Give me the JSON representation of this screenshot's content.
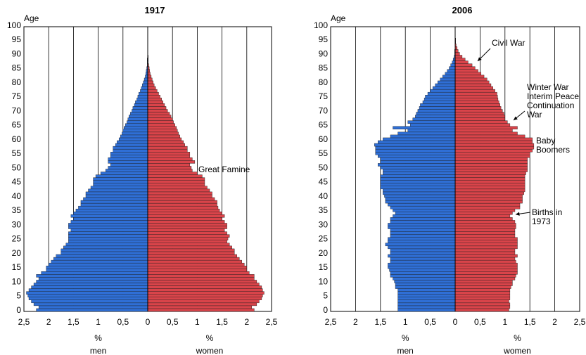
{
  "colors": {
    "men": "#2f6fd6",
    "women": "#d9444a",
    "grid": "#000000",
    "bar_edge": "#1a1a1a"
  },
  "chart_data": [
    {
      "type": "bar",
      "orientation": "horizontal-population-pyramid",
      "title": "1917",
      "ylabel": "Age",
      "y_ticks": [
        "0",
        "5",
        "10",
        "15",
        "20",
        "25",
        "30",
        "35",
        "40",
        "45",
        "50",
        "55",
        "60",
        "65",
        "70",
        "75",
        "80",
        "85",
        "90",
        "95",
        "100"
      ],
      "x_ticks_left": [
        "2,5",
        "2",
        "1,5",
        "1",
        "0,5",
        "0"
      ],
      "x_ticks_right": [
        "0,5",
        "1",
        "1,5",
        "2",
        "2,5"
      ],
      "xlim": [
        -2.5,
        2.5
      ],
      "ylim": [
        0,
        100
      ],
      "grid": "vertical",
      "label_men": "%\nmen",
      "label_women": "%\nwomen",
      "annotations": [
        {
          "text": "Great Famine",
          "age": 50
        }
      ],
      "series": [
        {
          "name": "men",
          "values": [
            2.25,
            2.2,
            2.3,
            2.35,
            2.4,
            2.42,
            2.45,
            2.4,
            2.35,
            2.3,
            2.25,
            2.2,
            2.25,
            2.15,
            2.05,
            2.05,
            2.0,
            1.95,
            1.9,
            1.85,
            1.75,
            1.75,
            1.7,
            1.65,
            1.6,
            1.6,
            1.6,
            1.6,
            1.55,
            1.6,
            1.6,
            1.55,
            1.5,
            1.55,
            1.5,
            1.45,
            1.4,
            1.35,
            1.35,
            1.3,
            1.25,
            1.25,
            1.2,
            1.15,
            1.1,
            1.1,
            1.1,
            1.05,
            0.95,
            0.85,
            0.8,
            0.75,
            0.8,
            0.8,
            0.75,
            0.75,
            0.7,
            0.7,
            0.65,
            0.62,
            0.58,
            0.55,
            0.52,
            0.5,
            0.48,
            0.45,
            0.42,
            0.4,
            0.38,
            0.35,
            0.32,
            0.3,
            0.27,
            0.25,
            0.22,
            0.2,
            0.18,
            0.15,
            0.13,
            0.11,
            0.09,
            0.07,
            0.05,
            0.04,
            0.03,
            0.02,
            0.01,
            0.01,
            0.01,
            0,
            0,
            0,
            0,
            0,
            0,
            0,
            0,
            0,
            0,
            0,
            0
          ]
        },
        {
          "name": "women",
          "values": [
            2.15,
            2.1,
            2.2,
            2.25,
            2.3,
            2.32,
            2.35,
            2.32,
            2.3,
            2.25,
            2.2,
            2.15,
            2.15,
            2.05,
            2.0,
            2.0,
            1.95,
            1.9,
            1.85,
            1.8,
            1.75,
            1.75,
            1.7,
            1.65,
            1.6,
            1.62,
            1.65,
            1.6,
            1.55,
            1.6,
            1.6,
            1.55,
            1.5,
            1.55,
            1.5,
            1.45,
            1.42,
            1.4,
            1.4,
            1.35,
            1.3,
            1.3,
            1.25,
            1.2,
            1.15,
            1.15,
            1.15,
            1.1,
            1.0,
            0.9,
            0.88,
            0.85,
            0.95,
            0.9,
            0.85,
            0.85,
            0.8,
            0.8,
            0.75,
            0.72,
            0.68,
            0.65,
            0.62,
            0.6,
            0.58,
            0.55,
            0.52,
            0.5,
            0.47,
            0.44,
            0.4,
            0.37,
            0.34,
            0.31,
            0.28,
            0.25,
            0.22,
            0.19,
            0.16,
            0.13,
            0.11,
            0.09,
            0.07,
            0.05,
            0.04,
            0.03,
            0.02,
            0.01,
            0.01,
            0.01,
            0,
            0,
            0,
            0,
            0,
            0,
            0,
            0,
            0,
            0,
            0
          ]
        }
      ]
    },
    {
      "type": "bar",
      "orientation": "horizontal-population-pyramid",
      "title": "2006",
      "ylabel": "Age",
      "y_ticks": [
        "0",
        "5",
        "10",
        "15",
        "20",
        "25",
        "30",
        "35",
        "40",
        "45",
        "50",
        "55",
        "60",
        "65",
        "70",
        "75",
        "80",
        "85",
        "90",
        "95",
        "100"
      ],
      "x_ticks_left": [
        "2,5",
        "2",
        "1,5",
        "1",
        "0,5",
        "0"
      ],
      "x_ticks_right": [
        "0,5",
        "1",
        "1,5",
        "2",
        "2,5"
      ],
      "xlim": [
        -2.5,
        2.5
      ],
      "ylim": [
        0,
        100
      ],
      "grid": "vertical",
      "label_men": "%\nmen",
      "label_women": "%\nwomen",
      "annotations": [
        {
          "text": "Civil War",
          "age": 88
        },
        {
          "text": "Winter War\nInterim Peace\nContinuation\nWar",
          "age": 67
        },
        {
          "text": "Baby\nBoomers",
          "age": 58
        },
        {
          "text": "Births in\n1973",
          "age": 34
        }
      ],
      "series": [
        {
          "name": "men",
          "values": [
            1.15,
            1.15,
            1.15,
            1.15,
            1.15,
            1.15,
            1.15,
            1.15,
            1.2,
            1.2,
            1.22,
            1.25,
            1.3,
            1.3,
            1.32,
            1.35,
            1.35,
            1.3,
            1.3,
            1.35,
            1.3,
            1.3,
            1.35,
            1.4,
            1.35,
            1.35,
            1.3,
            1.3,
            1.3,
            1.35,
            1.35,
            1.3,
            1.3,
            1.25,
            1.2,
            1.25,
            1.3,
            1.35,
            1.4,
            1.4,
            1.42,
            1.45,
            1.45,
            1.5,
            1.5,
            1.5,
            1.5,
            1.5,
            1.45,
            1.45,
            1.5,
            1.55,
            1.5,
            1.5,
            1.55,
            1.6,
            1.6,
            1.6,
            1.62,
            1.55,
            1.45,
            1.3,
            1.15,
            0.95,
            1.25,
            0.9,
            0.95,
            0.85,
            0.8,
            0.78,
            0.75,
            0.72,
            0.7,
            0.65,
            0.62,
            0.6,
            0.55,
            0.5,
            0.45,
            0.4,
            0.35,
            0.3,
            0.25,
            0.2,
            0.16,
            0.12,
            0.09,
            0.06,
            0.04,
            0.02,
            0.01,
            0.01,
            0,
            0,
            0,
            0,
            0,
            0,
            0,
            0,
            0
          ]
        },
        {
          "name": "women",
          "values": [
            1.08,
            1.1,
            1.1,
            1.08,
            1.1,
            1.1,
            1.1,
            1.1,
            1.12,
            1.15,
            1.15,
            1.2,
            1.22,
            1.25,
            1.25,
            1.25,
            1.25,
            1.22,
            1.2,
            1.25,
            1.2,
            1.2,
            1.25,
            1.25,
            1.25,
            1.25,
            1.2,
            1.2,
            1.2,
            1.22,
            1.22,
            1.2,
            1.15,
            1.1,
            1.15,
            1.2,
            1.3,
            1.3,
            1.35,
            1.35,
            1.35,
            1.38,
            1.4,
            1.4,
            1.4,
            1.4,
            1.4,
            1.4,
            1.42,
            1.45,
            1.45,
            1.45,
            1.45,
            1.45,
            1.5,
            1.5,
            1.55,
            1.58,
            1.58,
            1.55,
            1.55,
            1.4,
            1.25,
            1.15,
            1.25,
            1.1,
            1.05,
            1.0,
            1.0,
            0.98,
            0.95,
            0.92,
            0.9,
            0.88,
            0.86,
            0.85,
            0.84,
            0.8,
            0.76,
            0.72,
            0.68,
            0.64,
            0.58,
            0.52,
            0.46,
            0.4,
            0.34,
            0.26,
            0.2,
            0.14,
            0.09,
            0.06,
            0.04,
            0.02,
            0.01,
            0.01,
            0,
            0,
            0,
            0,
            0
          ]
        }
      ]
    }
  ]
}
